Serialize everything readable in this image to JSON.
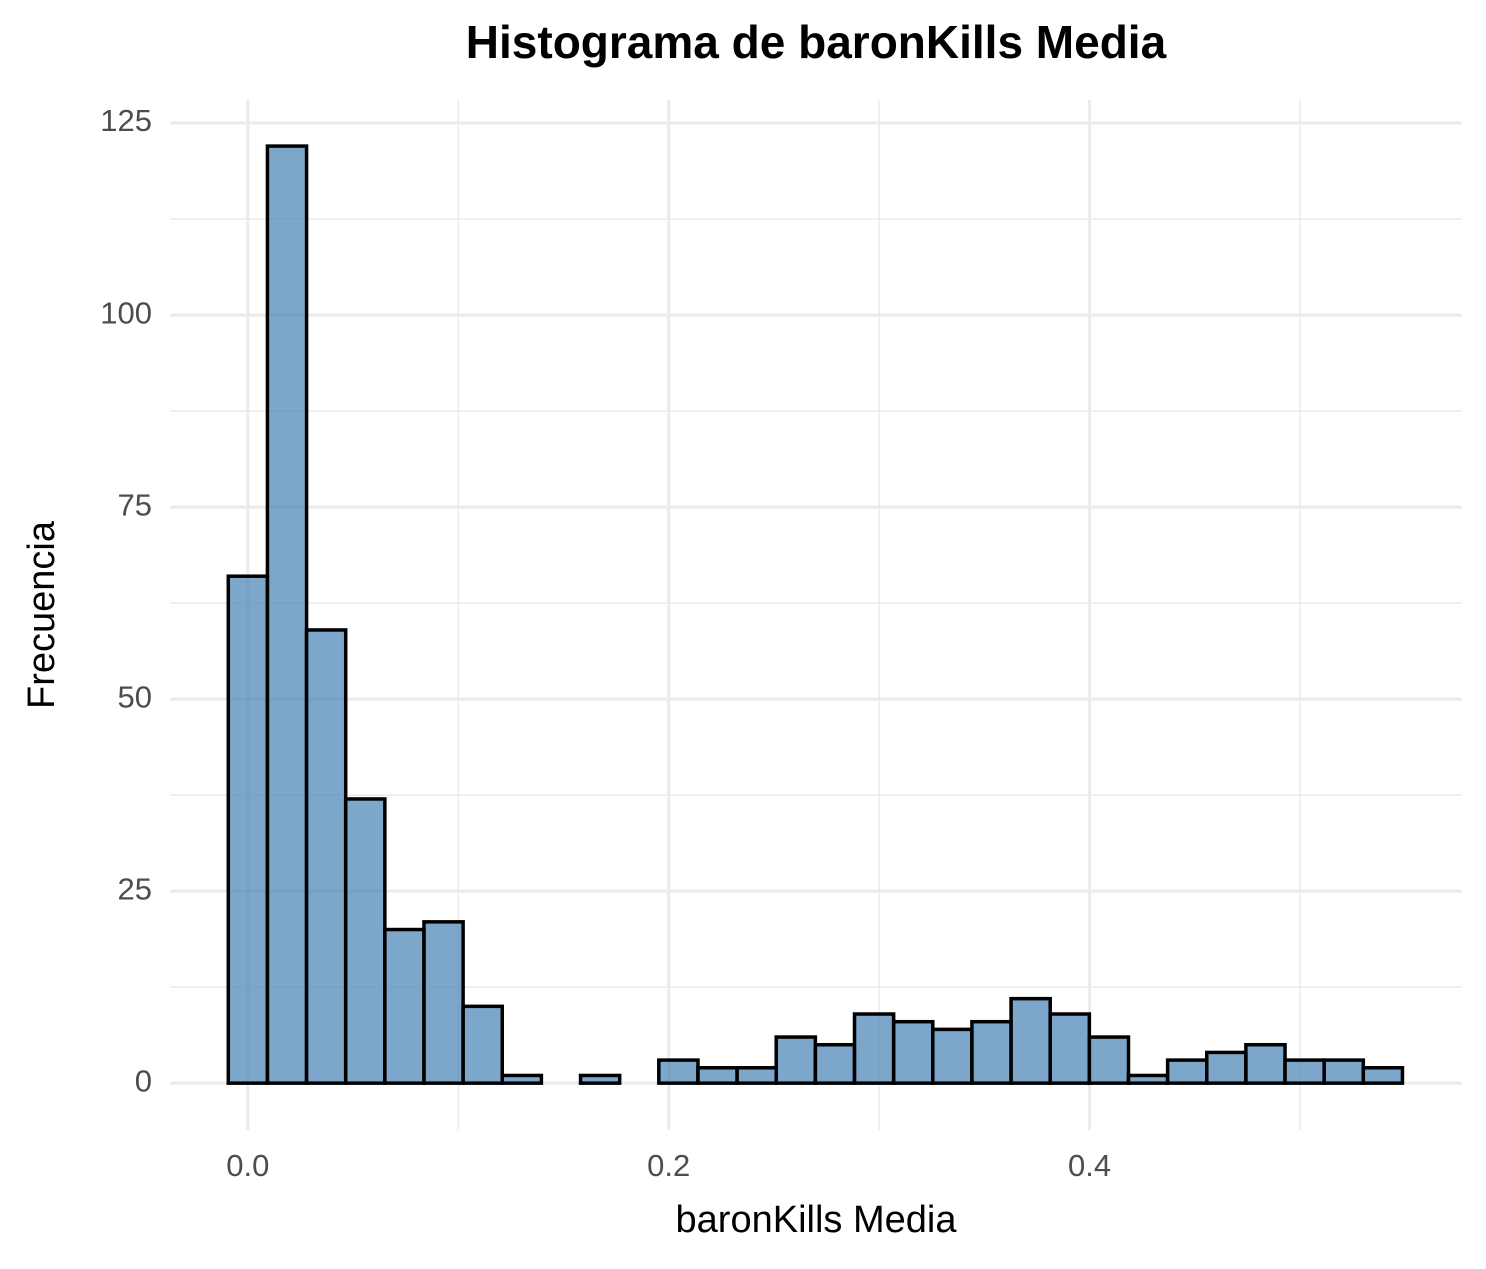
{
  "chart_data": {
    "type": "histogram",
    "title": "Histograma de baronKills Media",
    "x_label": "baronKills Media",
    "y_label": "Frecuencia",
    "bins": [
      -0.0093,
      0.0093,
      0.0279,
      0.0465,
      0.0651,
      0.0837,
      0.1023,
      0.1209,
      0.1395,
      0.1581,
      0.1767,
      0.1953,
      0.2139,
      0.2325,
      0.2511,
      0.2697,
      0.2883,
      0.3069,
      0.3255,
      0.3441,
      0.3627,
      0.3813,
      0.3999,
      0.4185,
      0.4371,
      0.4557,
      0.4743,
      0.4929,
      0.5115,
      0.5301,
      0.5487
    ],
    "counts": [
      66,
      122,
      59,
      37,
      20,
      21,
      10,
      1,
      0,
      1,
      0,
      3,
      2,
      2,
      6,
      5,
      9,
      8,
      7,
      8,
      11,
      9,
      6,
      1,
      3,
      4,
      5,
      3,
      3,
      2
    ],
    "color": "#4682b4",
    "edge_color": "#000000",
    "xlim": [
      -0.037,
      0.577
    ],
    "ylim": [
      -6.1,
      128
    ],
    "xticks": [
      {
        "value": 0,
        "label": "0.0"
      },
      0.2,
      0.4
    ],
    "yticks": [
      0,
      25,
      50,
      75,
      100,
      125
    ],
    "x_minor_ticks": [
      0.1,
      0.3,
      0.5
    ],
    "y_minor_ticks": [
      12.5,
      37.5,
      62.5,
      87.5,
      112.5
    ],
    "grid": true
  }
}
